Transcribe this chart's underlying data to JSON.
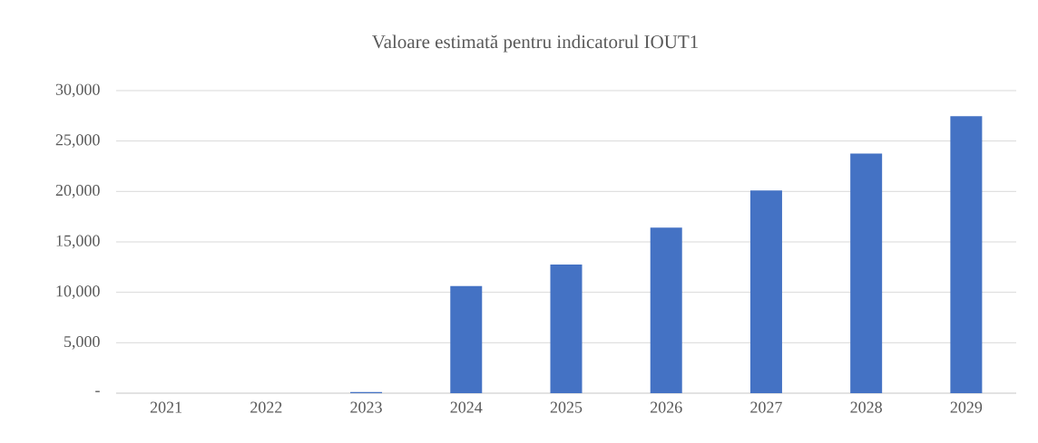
{
  "chart_data": {
    "type": "bar",
    "title": "Valoare estimată pentru indicatorul IOUT1",
    "categories": [
      "2021",
      "2022",
      "2023",
      "2024",
      "2025",
      "2026",
      "2027",
      "2028",
      "2029"
    ],
    "values": [
      0,
      0,
      100,
      10610,
      12750,
      16420,
      20090,
      23760,
      27460
    ],
    "color": "#4472c4",
    "ylim": [
      0,
      30000
    ],
    "yticks": [
      {
        "value": 0,
        "label": "-"
      },
      {
        "value": 5000,
        "label": "5,000"
      },
      {
        "value": 10000,
        "label": "10,000"
      },
      {
        "value": 15000,
        "label": "15,000"
      },
      {
        "value": 20000,
        "label": "20,000"
      },
      {
        "value": 25000,
        "label": "25,000"
      },
      {
        "value": 30000,
        "label": "30,000"
      }
    ],
    "grid": "y"
  }
}
